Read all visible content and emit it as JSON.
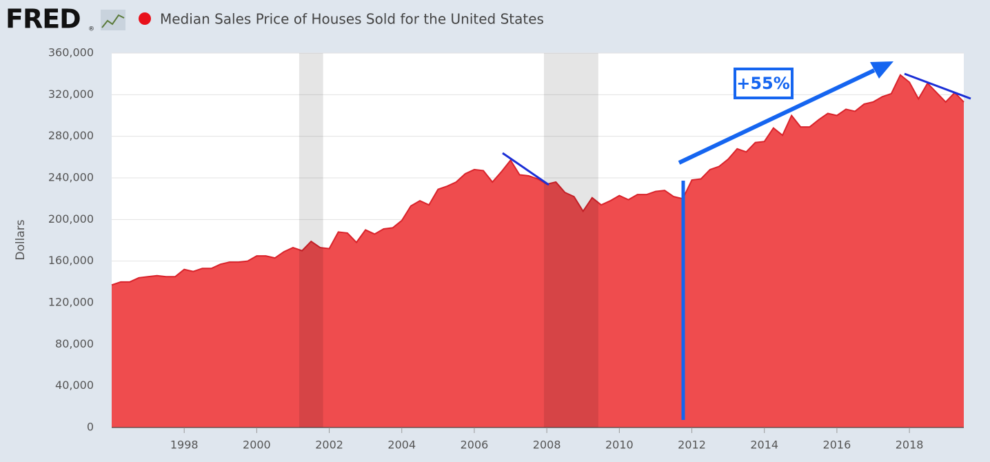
{
  "chart_data": {
    "type": "area",
    "brand": "FRED",
    "brand_mark": "®",
    "y_label": "Dollars",
    "annotations": [
      "+55%"
    ],
    "x": [
      1996,
      1996.25,
      1996.5,
      1996.75,
      1997,
      1997.25,
      1997.5,
      1997.75,
      1998,
      1998.25,
      1998.5,
      1998.75,
      1999,
      1999.25,
      1999.5,
      1999.75,
      2000,
      2000.25,
      2000.5,
      2000.75,
      2001,
      2001.25,
      2001.5,
      2001.75,
      2002,
      2002.25,
      2002.5,
      2002.75,
      2003,
      2003.25,
      2003.5,
      2003.75,
      2004,
      2004.25,
      2004.5,
      2004.75,
      2005,
      2005.25,
      2005.5,
      2005.75,
      2006,
      2006.25,
      2006.5,
      2006.75,
      2007,
      2007.25,
      2007.5,
      2007.75,
      2008,
      2008.25,
      2008.5,
      2008.75,
      2009,
      2009.25,
      2009.5,
      2009.75,
      2010,
      2010.25,
      2010.5,
      2010.75,
      2011,
      2011.25,
      2011.5,
      2011.75,
      2012,
      2012.25,
      2012.5,
      2012.75,
      2013,
      2013.25,
      2013.5,
      2013.75,
      2014,
      2014.25,
      2014.5,
      2014.75,
      2015,
      2015.25,
      2015.5,
      2015.75,
      2016,
      2016.25,
      2016.5,
      2016.75,
      2017,
      2017.25,
      2017.5,
      2017.75,
      2018,
      2018.25,
      2018.5,
      2018.75,
      2019,
      2019.25,
      2019.5
    ],
    "series": [
      {
        "name": "Median Sales Price of Houses Sold for the United States",
        "color": "#ef4c4e",
        "line_color": "#d9232b",
        "values": [
          137000,
          140000,
          140000,
          144000,
          145000,
          146000,
          145000,
          145000,
          152000,
          150000,
          153000,
          153000,
          157000,
          159000,
          159000,
          160000,
          165000,
          165000,
          163000,
          169000,
          173000,
          170000,
          179000,
          173000,
          172000,
          188000,
          187000,
          178000,
          190000,
          186000,
          191000,
          192000,
          199000,
          213000,
          218000,
          214000,
          229000,
          232000,
          236000,
          244000,
          248000,
          247000,
          236000,
          246000,
          257000,
          243000,
          242000,
          239000,
          234000,
          236000,
          226000,
          222000,
          208000,
          221000,
          214000,
          218000,
          223000,
          219000,
          224000,
          224000,
          227000,
          228000,
          222000,
          220000,
          238000,
          239000,
          248000,
          251000,
          258000,
          268000,
          265000,
          274000,
          275000,
          288000,
          281000,
          300000,
          289000,
          289000,
          296000,
          302000,
          300000,
          306000,
          304000,
          311000,
          313000,
          318000,
          321000,
          339000,
          332000,
          316000,
          331000,
          322000,
          313000,
          322000,
          313000
        ]
      }
    ],
    "recessions": [
      [
        2001.17,
        2001.83
      ],
      [
        2007.92,
        2009.42
      ]
    ],
    "xlim": [
      1996,
      2019.5
    ],
    "xticks": [
      1998,
      2000,
      2002,
      2004,
      2006,
      2008,
      2010,
      2012,
      2014,
      2016,
      2018
    ],
    "ylim": [
      0,
      360000
    ],
    "yticks": [
      0,
      {
        "value": 40000,
        "label": "40,000"
      },
      {
        "value": 80000,
        "label": "80,000"
      },
      {
        "value": 120000,
        "label": "120,000"
      },
      {
        "value": 160000,
        "label": "160,000"
      },
      {
        "value": 200000,
        "label": "200,000"
      },
      {
        "value": 240000,
        "label": "240,000"
      },
      {
        "value": 280000,
        "label": "280,000"
      },
      {
        "value": 320000,
        "label": "320,000"
      },
      {
        "value": 360000,
        "label": "360,000"
      }
    ],
    "grid": true
  }
}
